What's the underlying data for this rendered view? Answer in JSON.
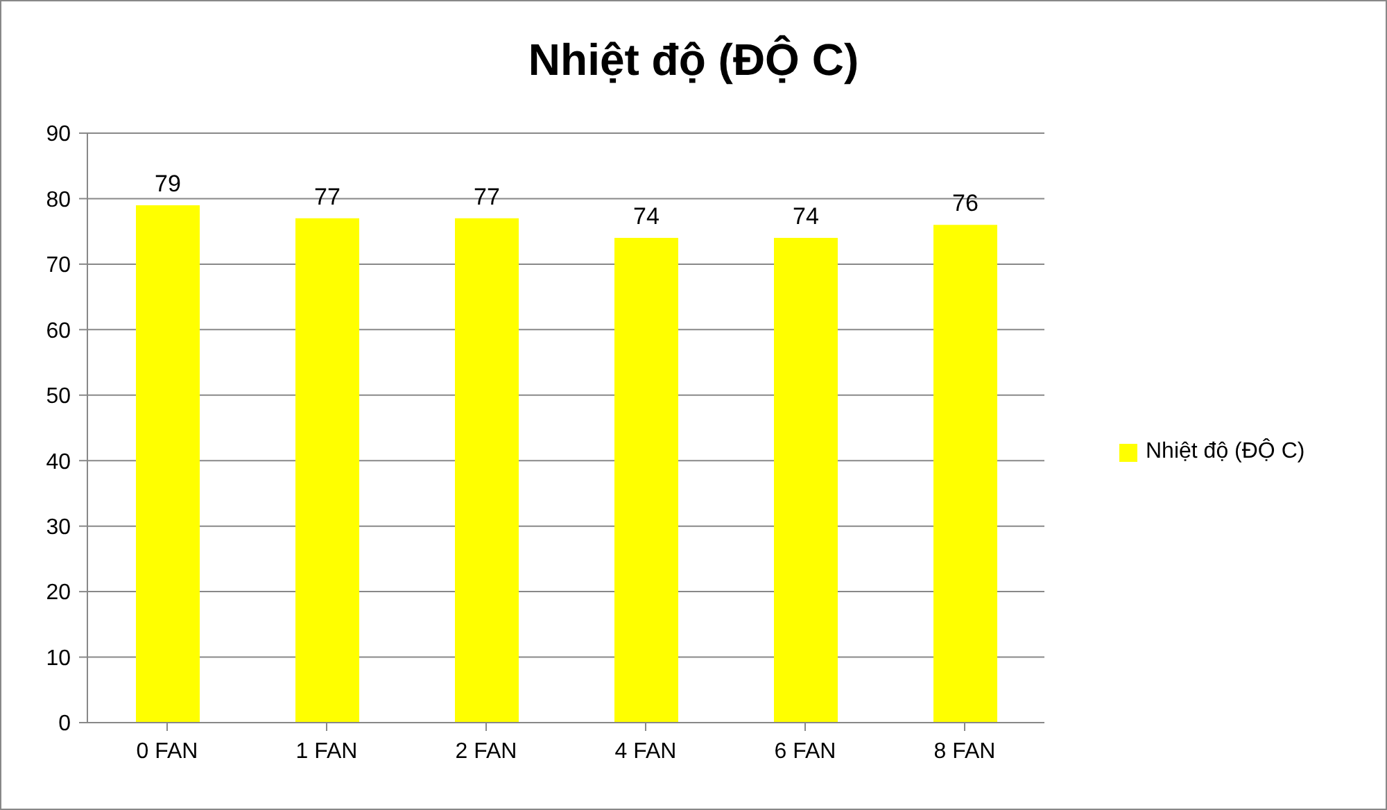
{
  "chart_data": {
    "type": "bar",
    "title": "Nhiệt độ (ĐỘ C)",
    "categories": [
      "0 FAN",
      "1 FAN",
      "2 FAN",
      "4 FAN",
      "6 FAN",
      "8 FAN"
    ],
    "series": [
      {
        "name": "Nhiệt độ (ĐỘ C)",
        "color": "#ffff00",
        "values": [
          79,
          77,
          77,
          74,
          74,
          76
        ]
      }
    ],
    "ylim": [
      0,
      90
    ],
    "yticks": [
      0,
      10,
      20,
      30,
      40,
      50,
      60,
      70,
      80,
      90
    ],
    "grid": "y",
    "legend": "right",
    "data_labels": true
  }
}
